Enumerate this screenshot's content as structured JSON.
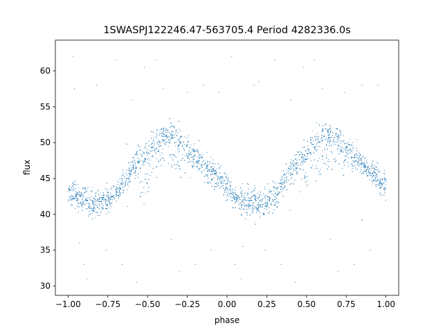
{
  "chart_data": {
    "type": "scatter",
    "title": "1SWASPJ122246.47-563705.4 Period 4282336.0s",
    "xlabel": "phase",
    "ylabel": "flux",
    "xlim": [
      -1.08,
      1.08
    ],
    "ylim": [
      28.7,
      64.3
    ],
    "xticks": [
      -1.0,
      -0.75,
      -0.5,
      -0.25,
      0.0,
      0.25,
      0.5,
      0.75,
      1.0
    ],
    "xtick_labels": [
      "−1.00",
      "−0.75",
      "−0.50",
      "−0.25",
      "0.00",
      "0.25",
      "0.50",
      "0.75",
      "1.00"
    ],
    "yticks": [
      30,
      35,
      40,
      45,
      50,
      55,
      60
    ],
    "ytick_labels": [
      "30",
      "35",
      "40",
      "45",
      "50",
      "55",
      "60"
    ],
    "grid": false,
    "marker_color": "#1f77b4",
    "series": [
      {
        "trend": {
          "phase": [
            0.0,
            0.05,
            0.1,
            0.15,
            0.2,
            0.25,
            0.3,
            0.35,
            0.4,
            0.45,
            0.5,
            0.55,
            0.6,
            0.65,
            0.7,
            0.75,
            0.8,
            0.85,
            0.9,
            0.95,
            1.0
          ],
          "flux": [
            43.5,
            42.5,
            42.0,
            41.5,
            41.5,
            42.0,
            42.5,
            44.5,
            46.0,
            47.5,
            48.5,
            50.0,
            51.0,
            51.0,
            50.5,
            49.0,
            48.0,
            47.0,
            46.0,
            45.0,
            44.0
          ]
        },
        "scatter_sd": 1.3,
        "outliers": [
          {
            "x": -0.97,
            "y": 62.0
          },
          {
            "x": -0.96,
            "y": 57.5
          },
          {
            "x": -0.93,
            "y": 36.0
          },
          {
            "x": -0.9,
            "y": 33.0
          },
          {
            "x": -0.88,
            "y": 31.0
          },
          {
            "x": -0.82,
            "y": 58.0
          },
          {
            "x": -0.76,
            "y": 35.0
          },
          {
            "x": -0.7,
            "y": 61.5
          },
          {
            "x": -0.66,
            "y": 33.0
          },
          {
            "x": -0.6,
            "y": 56.0
          },
          {
            "x": -0.57,
            "y": 30.5
          },
          {
            "x": -0.52,
            "y": 60.5
          },
          {
            "x": -0.45,
            "y": 61.5
          },
          {
            "x": -0.4,
            "y": 57.5
          },
          {
            "x": -0.35,
            "y": 36.5
          },
          {
            "x": -0.3,
            "y": 32.0
          },
          {
            "x": -0.25,
            "y": 57.0
          },
          {
            "x": -0.2,
            "y": 33.0
          },
          {
            "x": -0.15,
            "y": 58.0
          },
          {
            "x": -0.1,
            "y": 35.0
          },
          {
            "x": -0.05,
            "y": 57.0
          },
          {
            "x": 0.03,
            "y": 62.0
          },
          {
            "x": 0.05,
            "y": 33.0
          },
          {
            "x": 0.09,
            "y": 31.0
          },
          {
            "x": 0.1,
            "y": 35.5
          },
          {
            "x": 0.17,
            "y": 58.0
          },
          {
            "x": 0.2,
            "y": 58.5
          },
          {
            "x": 0.24,
            "y": 35.0
          },
          {
            "x": 0.3,
            "y": 61.5
          },
          {
            "x": 0.34,
            "y": 33.0
          },
          {
            "x": 0.4,
            "y": 56.0
          },
          {
            "x": 0.43,
            "y": 30.5
          },
          {
            "x": 0.48,
            "y": 60.5
          },
          {
            "x": 0.55,
            "y": 61.5
          },
          {
            "x": 0.6,
            "y": 57.5
          },
          {
            "x": 0.65,
            "y": 36.5
          },
          {
            "x": 0.7,
            "y": 32.0
          },
          {
            "x": 0.74,
            "y": 57.0
          },
          {
            "x": 0.8,
            "y": 33.0
          },
          {
            "x": 0.85,
            "y": 58.0
          },
          {
            "x": 0.9,
            "y": 35.0
          },
          {
            "x": 0.95,
            "y": 58.0
          }
        ]
      }
    ]
  }
}
